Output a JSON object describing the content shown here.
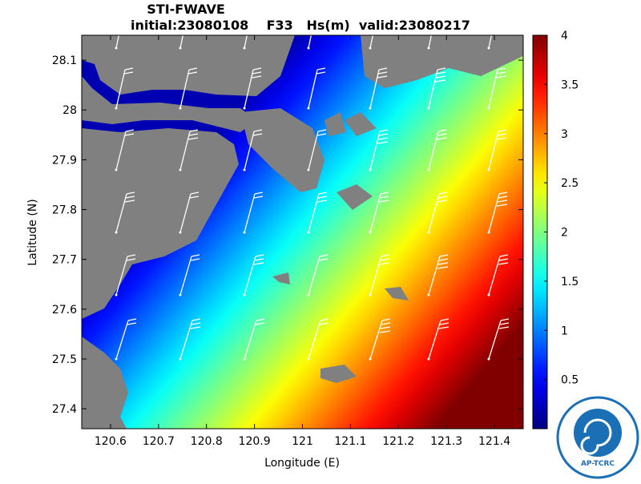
{
  "chart_data": {
    "type": "heatmap-map",
    "title": "STI-FWAVE",
    "subtitle": "initial:23080108    F33   Hs(m)  valid:23080217",
    "x_label": "Longitude (E)",
    "y_label": "Latitude (N)",
    "xlim": [
      120.54,
      121.46
    ],
    "ylim": [
      27.36,
      28.15
    ],
    "xticks": [
      120.6,
      120.7,
      120.8,
      120.9,
      121,
      121.1,
      121.2,
      121.3,
      121.4
    ],
    "yticks": [
      27.4,
      27.5,
      27.6,
      27.7,
      27.8,
      27.9,
      28,
      28.1
    ],
    "colormap": "jet",
    "clim": [
      0,
      4
    ],
    "cticks": [
      0.5,
      1,
      1.5,
      2,
      2.5,
      3,
      3.5,
      4
    ],
    "land_color": "#808080",
    "logo_text": "AP-TCRC"
  }
}
